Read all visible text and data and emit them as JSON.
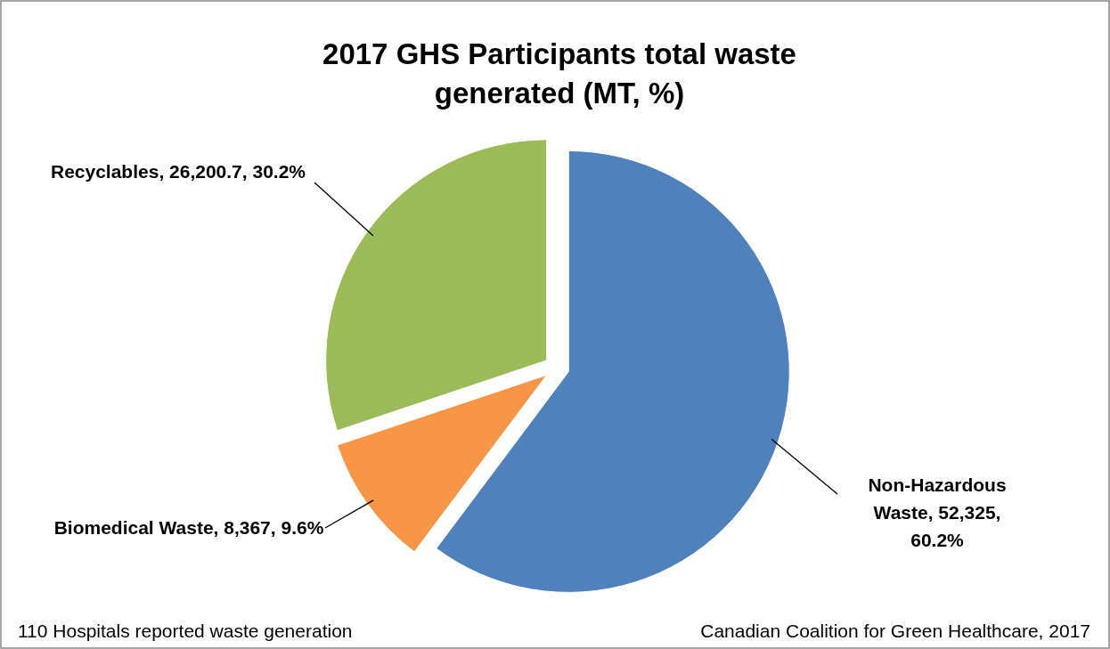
{
  "chart_data": {
    "type": "pie",
    "title": "2017 GHS Participants total waste generated (MT, %)",
    "categories": [
      "Non-Hazardous Waste",
      "Biomedical Waste",
      "Recyclables"
    ],
    "values": [
      52325,
      8367,
      26200.7
    ],
    "colors": [
      "#4f81bd",
      "#f79646",
      "#9bbb59"
    ],
    "value_labels": [
      "52,325, 60.2%",
      "8,367, 9.6%",
      "26,200.7, 30.2%"
    ],
    "annotations": [
      "110 Hospitals reported waste generation",
      "Canadian Coalition for Green Healthcare, 2017"
    ]
  }
}
